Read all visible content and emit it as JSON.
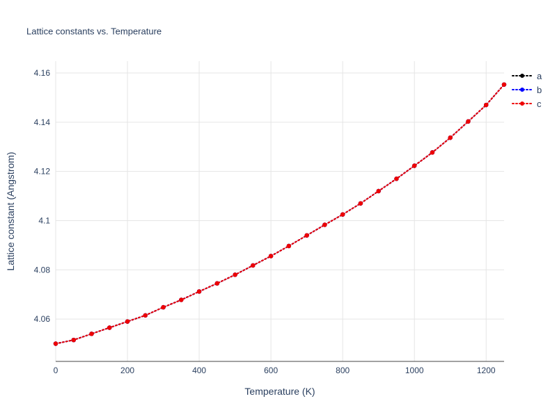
{
  "title": "Lattice constants vs. Temperature",
  "chart_data": {
    "type": "line",
    "title": "Lattice constants vs. Temperature",
    "xlabel": "Temperature (K)",
    "ylabel": "Lattice constant (Angstrom)",
    "xlim": [
      0,
      1250
    ],
    "ylim": [
      4.0428,
      4.1648
    ],
    "x_ticks": [
      0,
      200,
      400,
      600,
      800,
      1000,
      1200
    ],
    "y_ticks": [
      4.06,
      4.08,
      4.1,
      4.12,
      4.14,
      4.16
    ],
    "grid": true,
    "legend_position": "top-right",
    "line_style": "dotted",
    "marker": "circle",
    "text_color": "#2a3f5f",
    "grid_color": "#e5e5e5",
    "axis_line_color": "#444444",
    "x": [
      0,
      50,
      100,
      150,
      200,
      250,
      300,
      350,
      400,
      450,
      500,
      550,
      600,
      650,
      700,
      750,
      800,
      850,
      900,
      950,
      1000,
      1050,
      1100,
      1150,
      1200,
      1250
    ],
    "series": [
      {
        "name": "a",
        "color": "#000000",
        "values": [
          4.05,
          4.0515,
          4.054,
          4.0565,
          4.059,
          4.0615,
          4.0648,
          4.0678,
          4.0712,
          4.0745,
          4.078,
          4.0818,
          4.0856,
          4.0897,
          4.094,
          4.0983,
          4.1025,
          4.107,
          4.112,
          4.117,
          4.1223,
          4.1277,
          4.1337,
          4.1403,
          4.147,
          4.1553
        ]
      },
      {
        "name": "b",
        "color": "#0000ff",
        "values": [
          4.05,
          4.0515,
          4.054,
          4.0565,
          4.059,
          4.0615,
          4.0648,
          4.0678,
          4.0712,
          4.0745,
          4.078,
          4.0818,
          4.0856,
          4.0897,
          4.094,
          4.0983,
          4.1025,
          4.107,
          4.112,
          4.117,
          4.1223,
          4.1277,
          4.1337,
          4.1403,
          4.147,
          4.1553
        ]
      },
      {
        "name": "c",
        "color": "#ee0000",
        "values": [
          4.05,
          4.0515,
          4.054,
          4.0565,
          4.059,
          4.0615,
          4.0648,
          4.0678,
          4.0712,
          4.0745,
          4.078,
          4.0818,
          4.0856,
          4.0897,
          4.094,
          4.0983,
          4.1025,
          4.107,
          4.112,
          4.117,
          4.1223,
          4.1277,
          4.1337,
          4.1403,
          4.147,
          4.1553
        ]
      }
    ]
  }
}
